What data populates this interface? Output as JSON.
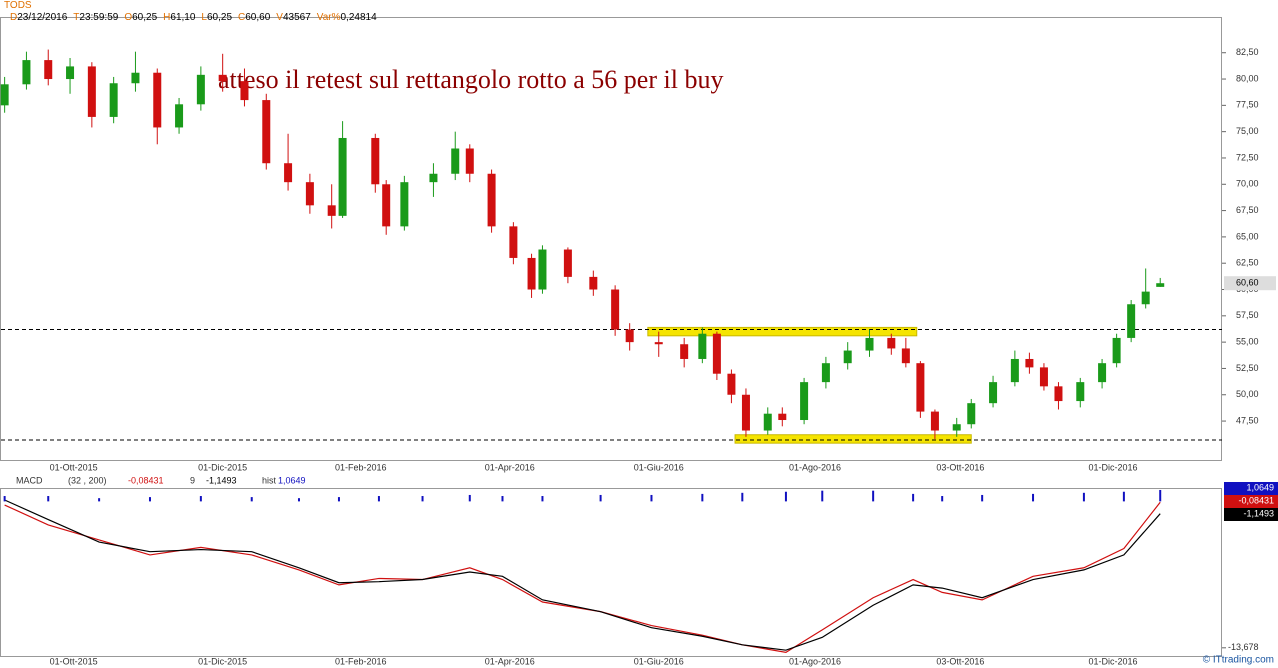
{
  "header": {
    "symbol": "TODS",
    "fields": [
      {
        "key": "D",
        "value": "23/12/2016"
      },
      {
        "key": "T",
        "value": "23:59:59"
      },
      {
        "key": "O",
        "value": "60,25"
      },
      {
        "key": "H",
        "value": "61,10"
      },
      {
        "key": "L",
        "value": "60,25"
      },
      {
        "key": "C",
        "value": "60,60"
      },
      {
        "key": "V",
        "value": "43567"
      },
      {
        "key": "Var%",
        "value": "0,24814"
      }
    ]
  },
  "footer": "© ITtrading.com",
  "chart_data": [
    {
      "type": "candlestick",
      "annotation": "atteso il retest sul rettangolo rotto a 56 per il buy",
      "up_color": "#1a9a1a",
      "down_color": "#d01010",
      "x": [
        0,
        6,
        12,
        18,
        24,
        30,
        36,
        42,
        48,
        54,
        60,
        66,
        72,
        78,
        84,
        90,
        93,
        102,
        105,
        110,
        118,
        124,
        128,
        134,
        140,
        145,
        148,
        155,
        162,
        168,
        172,
        180,
        187,
        192,
        196,
        200,
        204,
        210,
        214,
        220,
        226,
        232,
        238,
        244,
        248,
        252,
        256,
        262,
        266,
        272,
        278,
        282,
        286,
        290,
        296,
        302,
        306,
        310,
        314,
        318
      ],
      "open": [
        77.5,
        79.5,
        81.8,
        80.0,
        81.2,
        76.4,
        79.6,
        80.6,
        75.4,
        77.6,
        80.4,
        79.8,
        78.0,
        72.0,
        70.2,
        68.0,
        67.0,
        74.4,
        70.0,
        66.0,
        70.2,
        71.0,
        73.4,
        71.0,
        66.0,
        63.0,
        60.0,
        63.8,
        61.2,
        60.0,
        56.2,
        55.0,
        54.8,
        53.4,
        55.8,
        52.0,
        50.0,
        46.6,
        48.2,
        47.6,
        51.2,
        53.0,
        54.2,
        55.4,
        54.4,
        53.0,
        48.4,
        46.6,
        47.2,
        49.2,
        51.2,
        53.4,
        52.6,
        50.8,
        49.4,
        51.2,
        53.0,
        55.4,
        58.6,
        60.25
      ],
      "high": [
        80.2,
        82.6,
        82.8,
        82.0,
        81.6,
        80.2,
        82.6,
        81.0,
        78.2,
        81.2,
        82.4,
        81.0,
        78.6,
        74.8,
        71.0,
        70.0,
        76.0,
        74.8,
        70.4,
        70.8,
        72.0,
        75.0,
        73.8,
        71.4,
        66.4,
        63.4,
        64.2,
        64.0,
        61.8,
        60.4,
        56.8,
        56.0,
        55.4,
        56.4,
        56.0,
        52.4,
        50.6,
        48.8,
        48.8,
        51.6,
        53.6,
        55.0,
        56.2,
        55.8,
        55.4,
        53.2,
        48.6,
        47.8,
        49.6,
        51.8,
        54.2,
        54.0,
        53.0,
        51.2,
        51.6,
        53.4,
        55.8,
        59.0,
        62.0,
        61.1
      ],
      "low": [
        76.8,
        79.0,
        79.4,
        78.6,
        75.4,
        75.8,
        78.8,
        73.8,
        74.8,
        77.0,
        78.8,
        77.4,
        71.4,
        69.4,
        67.2,
        65.8,
        66.8,
        69.2,
        65.2,
        65.6,
        68.8,
        70.4,
        70.2,
        65.4,
        62.4,
        59.2,
        59.6,
        60.6,
        59.4,
        55.6,
        54.2,
        53.6,
        52.6,
        53.0,
        51.4,
        49.2,
        46.0,
        46.2,
        47.0,
        47.2,
        50.6,
        52.4,
        53.6,
        53.8,
        52.6,
        47.8,
        45.8,
        46.0,
        46.8,
        48.8,
        50.8,
        52.0,
        50.4,
        48.6,
        48.8,
        50.6,
        52.6,
        55.0,
        58.2,
        60.25
      ],
      "close": [
        79.5,
        81.8,
        80.0,
        81.2,
        76.4,
        79.6,
        80.6,
        75.4,
        77.6,
        80.4,
        79.8,
        78.0,
        72.0,
        70.2,
        68.0,
        67.0,
        74.4,
        70.0,
        66.0,
        70.2,
        71.0,
        73.4,
        71.0,
        66.0,
        63.0,
        60.0,
        63.8,
        61.2,
        60.0,
        56.2,
        55.0,
        54.8,
        53.4,
        55.8,
        52.0,
        50.0,
        46.6,
        48.2,
        47.6,
        51.2,
        53.0,
        54.2,
        55.4,
        54.4,
        53.0,
        48.4,
        46.6,
        47.2,
        49.2,
        51.2,
        53.4,
        52.6,
        50.8,
        49.4,
        51.2,
        53.0,
        55.4,
        58.6,
        59.8,
        60.6
      ],
      "last_price": {
        "value": 60.6,
        "label": "60,60"
      },
      "levels": [
        56.2,
        45.7
      ],
      "zones": [
        {
          "xlim": [
            177,
            251
          ],
          "ylim": [
            55.6,
            56.4
          ]
        },
        {
          "xlim": [
            201,
            266
          ],
          "ylim": [
            45.4,
            46.2
          ]
        }
      ],
      "zone_color": "#f5e400",
      "xlim": [
        -1,
        335
      ],
      "ylim": [
        43.8,
        85.8
      ],
      "yticks": [
        {
          "value": 47.5,
          "label": "47,50"
        },
        {
          "value": 50,
          "label": "50,00"
        },
        {
          "value": 52.5,
          "label": "52,50"
        },
        {
          "value": 55,
          "label": "55,00"
        },
        {
          "value": 57.5,
          "label": "57,50"
        },
        {
          "value": 60,
          "label": "60,00"
        },
        {
          "value": 62.5,
          "label": "62,50"
        },
        {
          "value": 65,
          "label": "65,00"
        },
        {
          "value": 67.5,
          "label": "67,50"
        },
        {
          "value": 70,
          "label": "70,00"
        },
        {
          "value": 72.5,
          "label": "72,50"
        },
        {
          "value": 75,
          "label": "75,00"
        },
        {
          "value": 77.5,
          "label": "77,50"
        },
        {
          "value": 80,
          "label": "80,00"
        },
        {
          "value": 82.5,
          "label": "82,50"
        }
      ],
      "xticks": [
        {
          "value": 19,
          "label": "01-Ott-2015"
        },
        {
          "value": 60,
          "label": "01-Dic-2015"
        },
        {
          "value": 98,
          "label": "01-Feb-2016"
        },
        {
          "value": 139,
          "label": "01-Apr-2016"
        },
        {
          "value": 180,
          "label": "01-Giu-2016"
        },
        {
          "value": 223,
          "label": "01-Ago-2016"
        },
        {
          "value": 263,
          "label": "03-Ott-2016"
        },
        {
          "value": 305,
          "label": "01-Dic-2016"
        }
      ]
    },
    {
      "type": "macd",
      "title": "MACD",
      "x": [
        0,
        12,
        26,
        40,
        54,
        68,
        81,
        92,
        103,
        115,
        128,
        137,
        148,
        164,
        178,
        192,
        203,
        215,
        225,
        239,
        250,
        258,
        269,
        283,
        297,
        308,
        318
      ],
      "series": [
        {
          "name": "(32 , 200)",
          "color": "#d01010",
          "last": {
            "value": -0.08431,
            "label": "-0,08431"
          },
          "values": [
            -0.34,
            -2.2,
            -3.6,
            -5.0,
            -4.3,
            -5.0,
            -6.4,
            -7.8,
            -7.2,
            -7.3,
            -6.2,
            -7.3,
            -9.4,
            -10.3,
            -11.6,
            -12.5,
            -13.4,
            -14.1,
            -12.0,
            -9.0,
            -7.3,
            -8.5,
            -9.2,
            -7.0,
            -6.2,
            -4.4,
            -0.08431
          ]
        },
        {
          "name": "9",
          "color": "#000000",
          "last": {
            "value": -1.1493,
            "label": "-1,1493"
          },
          "values": [
            0.13,
            -1.7,
            -3.8,
            -4.7,
            -4.5,
            -4.7,
            -6.2,
            -7.6,
            -7.5,
            -7.3,
            -6.6,
            -7.0,
            -9.2,
            -10.3,
            -11.8,
            -12.6,
            -13.4,
            -13.9,
            -12.7,
            -9.7,
            -7.8,
            -8.1,
            -9.0,
            -7.3,
            -6.4,
            -5.0,
            -1.1493
          ]
        },
        {
          "name": "hist",
          "color": "#1010c0",
          "last": {
            "value": 1.0649,
            "label": "1,0649"
          },
          "values": [
            0.5,
            0.5,
            0.3,
            0.4,
            0.5,
            0.4,
            0.3,
            0.4,
            0.5,
            0.5,
            0.6,
            0.5,
            0.5,
            0.6,
            0.6,
            0.7,
            0.8,
            0.9,
            1.0,
            1.0,
            0.7,
            0.5,
            0.6,
            0.7,
            0.8,
            0.9,
            1.0649
          ]
        }
      ],
      "xlim": [
        -1,
        335
      ],
      "ylim": [
        -14.35,
        1.25
      ],
      "yticks": [
        {
          "value": -13.678,
          "label": "-13,678"
        }
      ],
      "xticks": [
        {
          "value": 19,
          "label": "01-Ott-2015"
        },
        {
          "value": 60,
          "label": "01-Dic-2015"
        },
        {
          "value": 98,
          "label": "01-Feb-2016"
        },
        {
          "value": 139,
          "label": "01-Apr-2016"
        },
        {
          "value": 180,
          "label": "01-Giu-2016"
        },
        {
          "value": 223,
          "label": "01-Ago-2016"
        },
        {
          "value": 263,
          "label": "03-Ott-2016"
        },
        {
          "value": 305,
          "label": "01-Dic-2016"
        }
      ]
    }
  ]
}
